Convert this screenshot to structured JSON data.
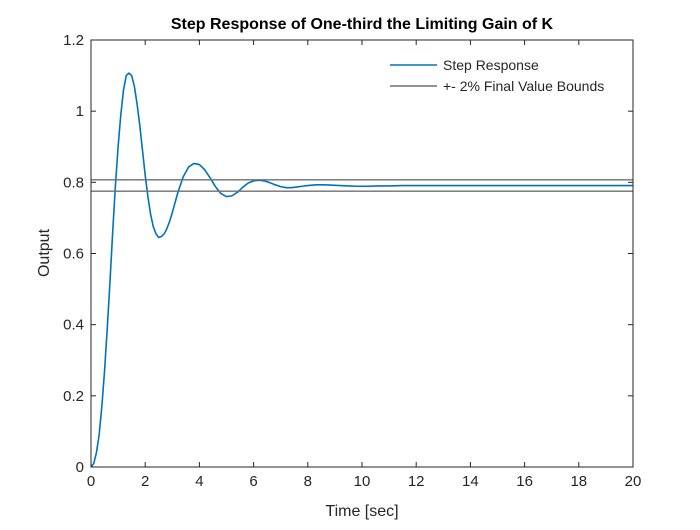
{
  "chart_data": {
    "type": "line",
    "title": "Step Response of One-third the Limiting Gain of K",
    "xlabel": "Time [sec]",
    "ylabel": "Output",
    "xlim": [
      0,
      20
    ],
    "ylim": [
      0,
      1.2
    ],
    "xticks": [
      0,
      2,
      4,
      6,
      8,
      10,
      12,
      14,
      16,
      18,
      20
    ],
    "yticks": [
      0,
      0.2,
      0.4,
      0.6,
      0.8,
      1,
      1.2
    ],
    "xtick_labels": [
      "0",
      "2",
      "4",
      "6",
      "8",
      "10",
      "12",
      "14",
      "16",
      "18",
      "20"
    ],
    "ytick_labels": [
      "0",
      "0.2",
      "0.4",
      "0.6",
      "0.8",
      "1",
      "1.2"
    ],
    "grid": false,
    "legend_position": "top-right",
    "series": [
      {
        "name": "Step Response",
        "color": "#0072BD",
        "x": [
          0,
          0.1,
          0.2,
          0.3,
          0.4,
          0.5,
          0.6,
          0.7,
          0.8,
          0.9,
          1.0,
          1.1,
          1.2,
          1.3,
          1.4,
          1.5,
          1.6,
          1.7,
          1.8,
          1.9,
          2.0,
          2.1,
          2.2,
          2.3,
          2.4,
          2.5,
          2.6,
          2.7,
          2.8,
          2.9,
          3.0,
          3.2,
          3.4,
          3.6,
          3.8,
          4.0,
          4.2,
          4.4,
          4.6,
          4.8,
          5.0,
          5.2,
          5.4,
          5.6,
          5.8,
          6.0,
          6.2,
          6.4,
          6.6,
          6.8,
          7.0,
          7.2,
          7.4,
          7.6,
          7.8,
          8.0,
          8.3,
          8.6,
          8.9,
          9.2,
          9.5,
          9.8,
          10.2,
          10.6,
          11.0,
          11.5,
          12.0,
          13.0,
          14.0,
          15.0,
          16.0,
          17.0,
          18.0,
          19.0,
          20.0
        ],
        "y": [
          0,
          0.01,
          0.04,
          0.09,
          0.17,
          0.27,
          0.39,
          0.52,
          0.66,
          0.79,
          0.9,
          0.99,
          1.06,
          1.1,
          1.107,
          1.1,
          1.07,
          1.02,
          0.96,
          0.89,
          0.82,
          0.76,
          0.71,
          0.675,
          0.655,
          0.645,
          0.648,
          0.655,
          0.67,
          0.69,
          0.715,
          0.77,
          0.815,
          0.843,
          0.853,
          0.85,
          0.835,
          0.812,
          0.787,
          0.768,
          0.76,
          0.762,
          0.772,
          0.786,
          0.798,
          0.804,
          0.806,
          0.804,
          0.799,
          0.793,
          0.788,
          0.785,
          0.785,
          0.787,
          0.789,
          0.791,
          0.793,
          0.793,
          0.792,
          0.791,
          0.79,
          0.789,
          0.789,
          0.79,
          0.79,
          0.791,
          0.791,
          0.791,
          0.791,
          0.791,
          0.791,
          0.791,
          0.791,
          0.791,
          0.791
        ]
      },
      {
        "name": "+- 2% Final Value Bounds",
        "color": "#6F6F6F",
        "x": [
          0,
          20
        ],
        "y": [
          0.807,
          0.807
        ]
      },
      {
        "name": "",
        "color": "#6F6F6F",
        "x": [
          0,
          20
        ],
        "y": [
          0.775,
          0.775
        ]
      }
    ]
  }
}
